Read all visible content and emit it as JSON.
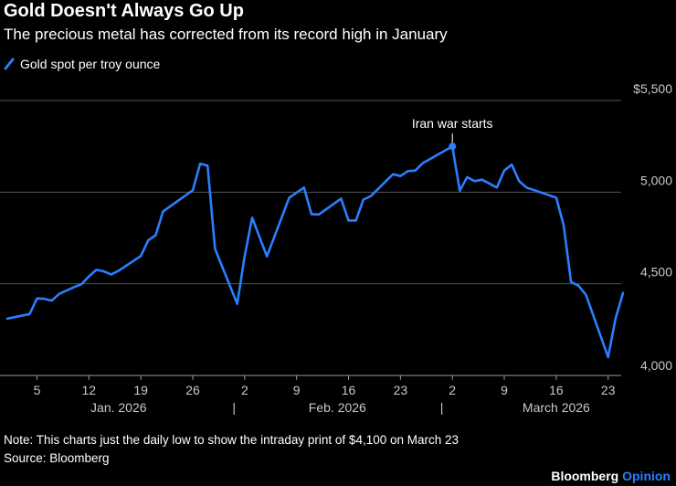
{
  "title": "Gold Doesn't Always Go Up",
  "subtitle": "The precious metal has corrected from its record high in January",
  "legend": {
    "label": "Gold spot per troy ounce",
    "icon": "line-swatch-icon"
  },
  "note": "Note: This charts just the daily low to show the intraday print of $4,100 on March 23",
  "source": "Source: Bloomberg",
  "brand": {
    "name": "Bloomberg",
    "section": "Opinion"
  },
  "colors": {
    "background": "#000000",
    "line": "#2a7fff",
    "grid": "#555555",
    "text": "#c8c8c8",
    "brand_accent": "#2a7fff"
  },
  "chart_data": {
    "type": "line",
    "title": "Gold Doesn't Always Go Up",
    "subtitle": "The precious metal has corrected from its record high in January",
    "xlabel": "",
    "ylabel": "",
    "ylim": [
      4000,
      5500
    ],
    "y_ticks": [
      4000,
      4500,
      5000,
      5500
    ],
    "y_tick_labels": [
      "4,000",
      "4,500",
      "5,000",
      "$5,500"
    ],
    "grid": true,
    "legend_position": "top-left",
    "x_start_day": 1,
    "x_end_day": 90,
    "x_ticks": [
      {
        "day": 5,
        "label": "5"
      },
      {
        "day": 12,
        "label": "12"
      },
      {
        "day": 19,
        "label": "19"
      },
      {
        "day": 26,
        "label": "26"
      },
      {
        "day": 33,
        "label": "2"
      },
      {
        "day": 40,
        "label": "9"
      },
      {
        "day": 47,
        "label": "16"
      },
      {
        "day": 54,
        "label": "23"
      },
      {
        "day": 61,
        "label": "2"
      },
      {
        "day": 68,
        "label": "9"
      },
      {
        "day": 75,
        "label": "16"
      },
      {
        "day": 82,
        "label": "23"
      }
    ],
    "months": [
      {
        "label": "Jan. 2026",
        "start_day": 1,
        "end_day": 31
      },
      {
        "label": "Feb. 2026",
        "start_day": 32,
        "end_day": 59
      },
      {
        "label": "March 2026",
        "start_day": 60,
        "end_day": 90
      }
    ],
    "month_separator_days": [
      31.5,
      59.5
    ],
    "series": [
      {
        "name": "Gold spot per troy ounce",
        "x": [
          1,
          4,
          5,
          6,
          7,
          8,
          10,
          11,
          12,
          13,
          14,
          15,
          16,
          19,
          20,
          21,
          22,
          26,
          27,
          28,
          29,
          32,
          33,
          34,
          36,
          39,
          41,
          42,
          43,
          46,
          47,
          48,
          49,
          50,
          53,
          54,
          55,
          56,
          57,
          61,
          62,
          63,
          64,
          65,
          67,
          68,
          69,
          70,
          71,
          75,
          76,
          77,
          78,
          79,
          82,
          83,
          84
        ],
        "values": [
          4310,
          4335,
          4420,
          4418,
          4408,
          4445,
          4482,
          4498,
          4540,
          4576,
          4568,
          4551,
          4571,
          4652,
          4737,
          4765,
          4895,
          5010,
          5155,
          5145,
          4690,
          4390,
          4650,
          4860,
          4650,
          4970,
          5025,
          4880,
          4878,
          4965,
          4845,
          4845,
          4960,
          4978,
          5098,
          5088,
          5115,
          5118,
          5158,
          5250,
          5008,
          5082,
          5060,
          5068,
          5025,
          5118,
          5150,
          5060,
          5025,
          4970,
          4820,
          4510,
          4490,
          4440,
          4100,
          4310,
          4450
        ]
      }
    ],
    "annotations": [
      {
        "text": "Iran war starts",
        "x": 61,
        "y": 5250
      }
    ]
  }
}
